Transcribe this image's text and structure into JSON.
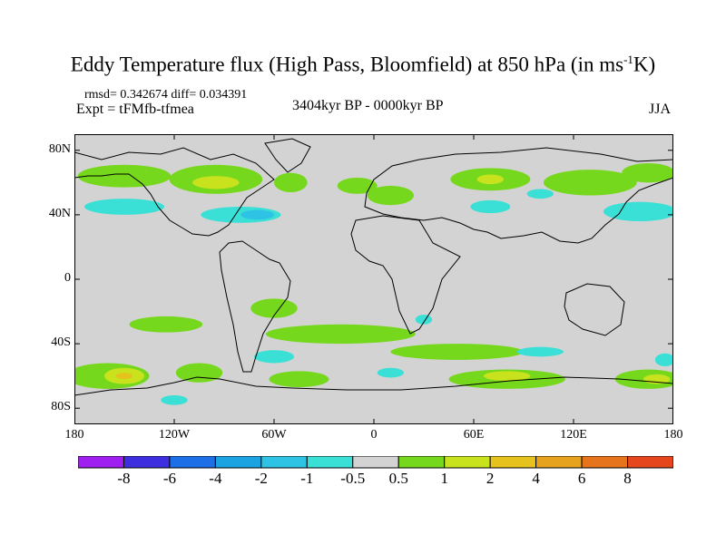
{
  "title": {
    "main": "Eddy Temperature flux (High Pass, Bloomfield) at 850 hPa (in ms",
    "superscript": "-1",
    "suffix": "K)"
  },
  "stats": "rmsd= 0.342674 diff= 0.034391",
  "experiment": "Expt = tFMfb-tfmea",
  "period": "3404kyr BP - 0000kyr BP",
  "season": "JJA",
  "map": {
    "projection": "cylindrical equidistant",
    "lon_range": [
      -180,
      180
    ],
    "lat_range": [
      -90,
      90
    ],
    "y_ticks": [
      {
        "lat": 80,
        "label": "80N"
      },
      {
        "lat": 40,
        "label": "40N"
      },
      {
        "lat": 0,
        "label": "0"
      },
      {
        "lat": -40,
        "label": "40S"
      },
      {
        "lat": -80,
        "label": "80S"
      }
    ],
    "x_ticks": [
      {
        "lon": -180,
        "label": "180"
      },
      {
        "lon": -120,
        "label": "120W"
      },
      {
        "lon": -60,
        "label": "60W"
      },
      {
        "lon": 0,
        "label": "0"
      },
      {
        "lon": 60,
        "label": "60E"
      },
      {
        "lon": 120,
        "label": "120E"
      },
      {
        "lon": 180,
        "label": "180"
      }
    ],
    "background_color": "#d3d3d3",
    "coast_color": "#000000",
    "anomalies": [
      {
        "lon": -150,
        "lat": 64,
        "rx": 28,
        "ry": 7,
        "level": 1
      },
      {
        "lon": -95,
        "lat": 62,
        "rx": 28,
        "ry": 9,
        "level": 1
      },
      {
        "lon": -95,
        "lat": 60,
        "rx": 14,
        "ry": 4,
        "level": 2
      },
      {
        "lon": -50,
        "lat": 60,
        "rx": 10,
        "ry": 6,
        "level": 1
      },
      {
        "lon": -10,
        "lat": 58,
        "rx": 12,
        "ry": 5,
        "level": 1
      },
      {
        "lon": 10,
        "lat": 52,
        "rx": 14,
        "ry": 6,
        "level": 1
      },
      {
        "lon": 70,
        "lat": 62,
        "rx": 24,
        "ry": 7,
        "level": 1
      },
      {
        "lon": 70,
        "lat": 62,
        "rx": 8,
        "ry": 3,
        "level": 2
      },
      {
        "lon": 130,
        "lat": 60,
        "rx": 28,
        "ry": 8,
        "level": 1
      },
      {
        "lon": 165,
        "lat": 66,
        "rx": 16,
        "ry": 6,
        "level": 1
      },
      {
        "lon": -150,
        "lat": 45,
        "rx": 24,
        "ry": 5,
        "level": -1
      },
      {
        "lon": -80,
        "lat": 40,
        "rx": 24,
        "ry": 5,
        "level": -1
      },
      {
        "lon": -70,
        "lat": 40,
        "rx": 10,
        "ry": 3,
        "level": -2
      },
      {
        "lon": 70,
        "lat": 45,
        "rx": 12,
        "ry": 4,
        "level": -1
      },
      {
        "lon": 160,
        "lat": 42,
        "rx": 22,
        "ry": 6,
        "level": -1
      },
      {
        "lon": 100,
        "lat": 53,
        "rx": 8,
        "ry": 3,
        "level": -1
      },
      {
        "lon": -125,
        "lat": -28,
        "rx": 22,
        "ry": 5,
        "level": 1
      },
      {
        "lon": -60,
        "lat": -18,
        "rx": 14,
        "ry": 6,
        "level": 1
      },
      {
        "lon": -20,
        "lat": -34,
        "rx": 45,
        "ry": 6,
        "level": 1
      },
      {
        "lon": 50,
        "lat": -45,
        "rx": 40,
        "ry": 5,
        "level": 1
      },
      {
        "lon": -160,
        "lat": -60,
        "rx": 25,
        "ry": 8,
        "level": 1
      },
      {
        "lon": -150,
        "lat": -60,
        "rx": 12,
        "ry": 5,
        "level": 2
      },
      {
        "lon": -150,
        "lat": -60,
        "rx": 5,
        "ry": 2,
        "level": 4
      },
      {
        "lon": -105,
        "lat": -58,
        "rx": 14,
        "ry": 6,
        "level": 1
      },
      {
        "lon": -45,
        "lat": -62,
        "rx": 18,
        "ry": 5,
        "level": 1
      },
      {
        "lon": 80,
        "lat": -62,
        "rx": 35,
        "ry": 6,
        "level": 1
      },
      {
        "lon": 80,
        "lat": -60,
        "rx": 14,
        "ry": 3,
        "level": 2
      },
      {
        "lon": 165,
        "lat": -62,
        "rx": 20,
        "ry": 6,
        "level": 1
      },
      {
        "lon": 170,
        "lat": -62,
        "rx": 8,
        "ry": 3,
        "level": 2
      },
      {
        "lon": -60,
        "lat": -48,
        "rx": 12,
        "ry": 4,
        "level": -1
      },
      {
        "lon": 10,
        "lat": -58,
        "rx": 8,
        "ry": 3,
        "level": -1
      },
      {
        "lon": 100,
        "lat": -45,
        "rx": 14,
        "ry": 3,
        "level": -1
      },
      {
        "lon": 175,
        "lat": -50,
        "rx": 6,
        "ry": 4,
        "level": -1
      },
      {
        "lon": -120,
        "lat": -75,
        "rx": 8,
        "ry": 3,
        "level": -1
      },
      {
        "lon": 30,
        "lat": -25,
        "rx": 5,
        "ry": 3,
        "level": -1
      }
    ]
  },
  "colorbar": {
    "colors": [
      "#9e1fef",
      "#3d2fe0",
      "#1c6fe6",
      "#1aa3e0",
      "#2ec3e4",
      "#3ae0d6",
      "#d3d3d3",
      "#76d81c",
      "#c8e31e",
      "#e6c21c",
      "#e6a21c",
      "#e6741c",
      "#e5461c"
    ],
    "labels": [
      "-8",
      "-6",
      "-4",
      "-2",
      "-1",
      "-0.5",
      "0.5",
      "1",
      "2",
      "4",
      "6",
      "8"
    ]
  }
}
